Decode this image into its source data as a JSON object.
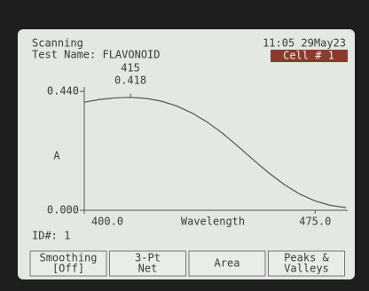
{
  "header": {
    "status": "Scanning",
    "test_name": "Test Name: FLAVONOID",
    "datetime": "11:05 29May23",
    "cell": "Cell # 1"
  },
  "chart_data": {
    "type": "line",
    "peak": {
      "x": 415,
      "y": 0.418
    },
    "y_label": "A",
    "x_label": "Wavelength",
    "x": [
      400,
      405,
      410,
      415,
      420,
      425,
      430,
      435,
      440,
      445,
      450,
      455,
      460,
      465,
      470,
      475,
      480,
      485
    ],
    "values": [
      0.4,
      0.41,
      0.416,
      0.418,
      0.414,
      0.404,
      0.386,
      0.36,
      0.326,
      0.284,
      0.236,
      0.186,
      0.138,
      0.095,
      0.06,
      0.034,
      0.018,
      0.01
    ],
    "color": "#555555",
    "xlim": [
      400,
      485
    ],
    "ylim": [
      0,
      0.44
    ],
    "xticks": [
      {
        "value": 400,
        "label": "400.0"
      },
      {
        "value": 475,
        "label": "475.0"
      }
    ],
    "yticks": [
      {
        "value": 0,
        "label": "0.000"
      },
      {
        "value": 0.44,
        "label": "0.440"
      }
    ]
  },
  "footer": {
    "id": "ID#: 1"
  },
  "buttons": [
    {
      "lines": [
        "Smoothing",
        "[Off]"
      ]
    },
    {
      "lines": [
        "3-Pt",
        "Net"
      ]
    },
    {
      "lines": [
        "Area"
      ]
    },
    {
      "lines": [
        "Peaks &",
        "Valleys"
      ]
    }
  ]
}
